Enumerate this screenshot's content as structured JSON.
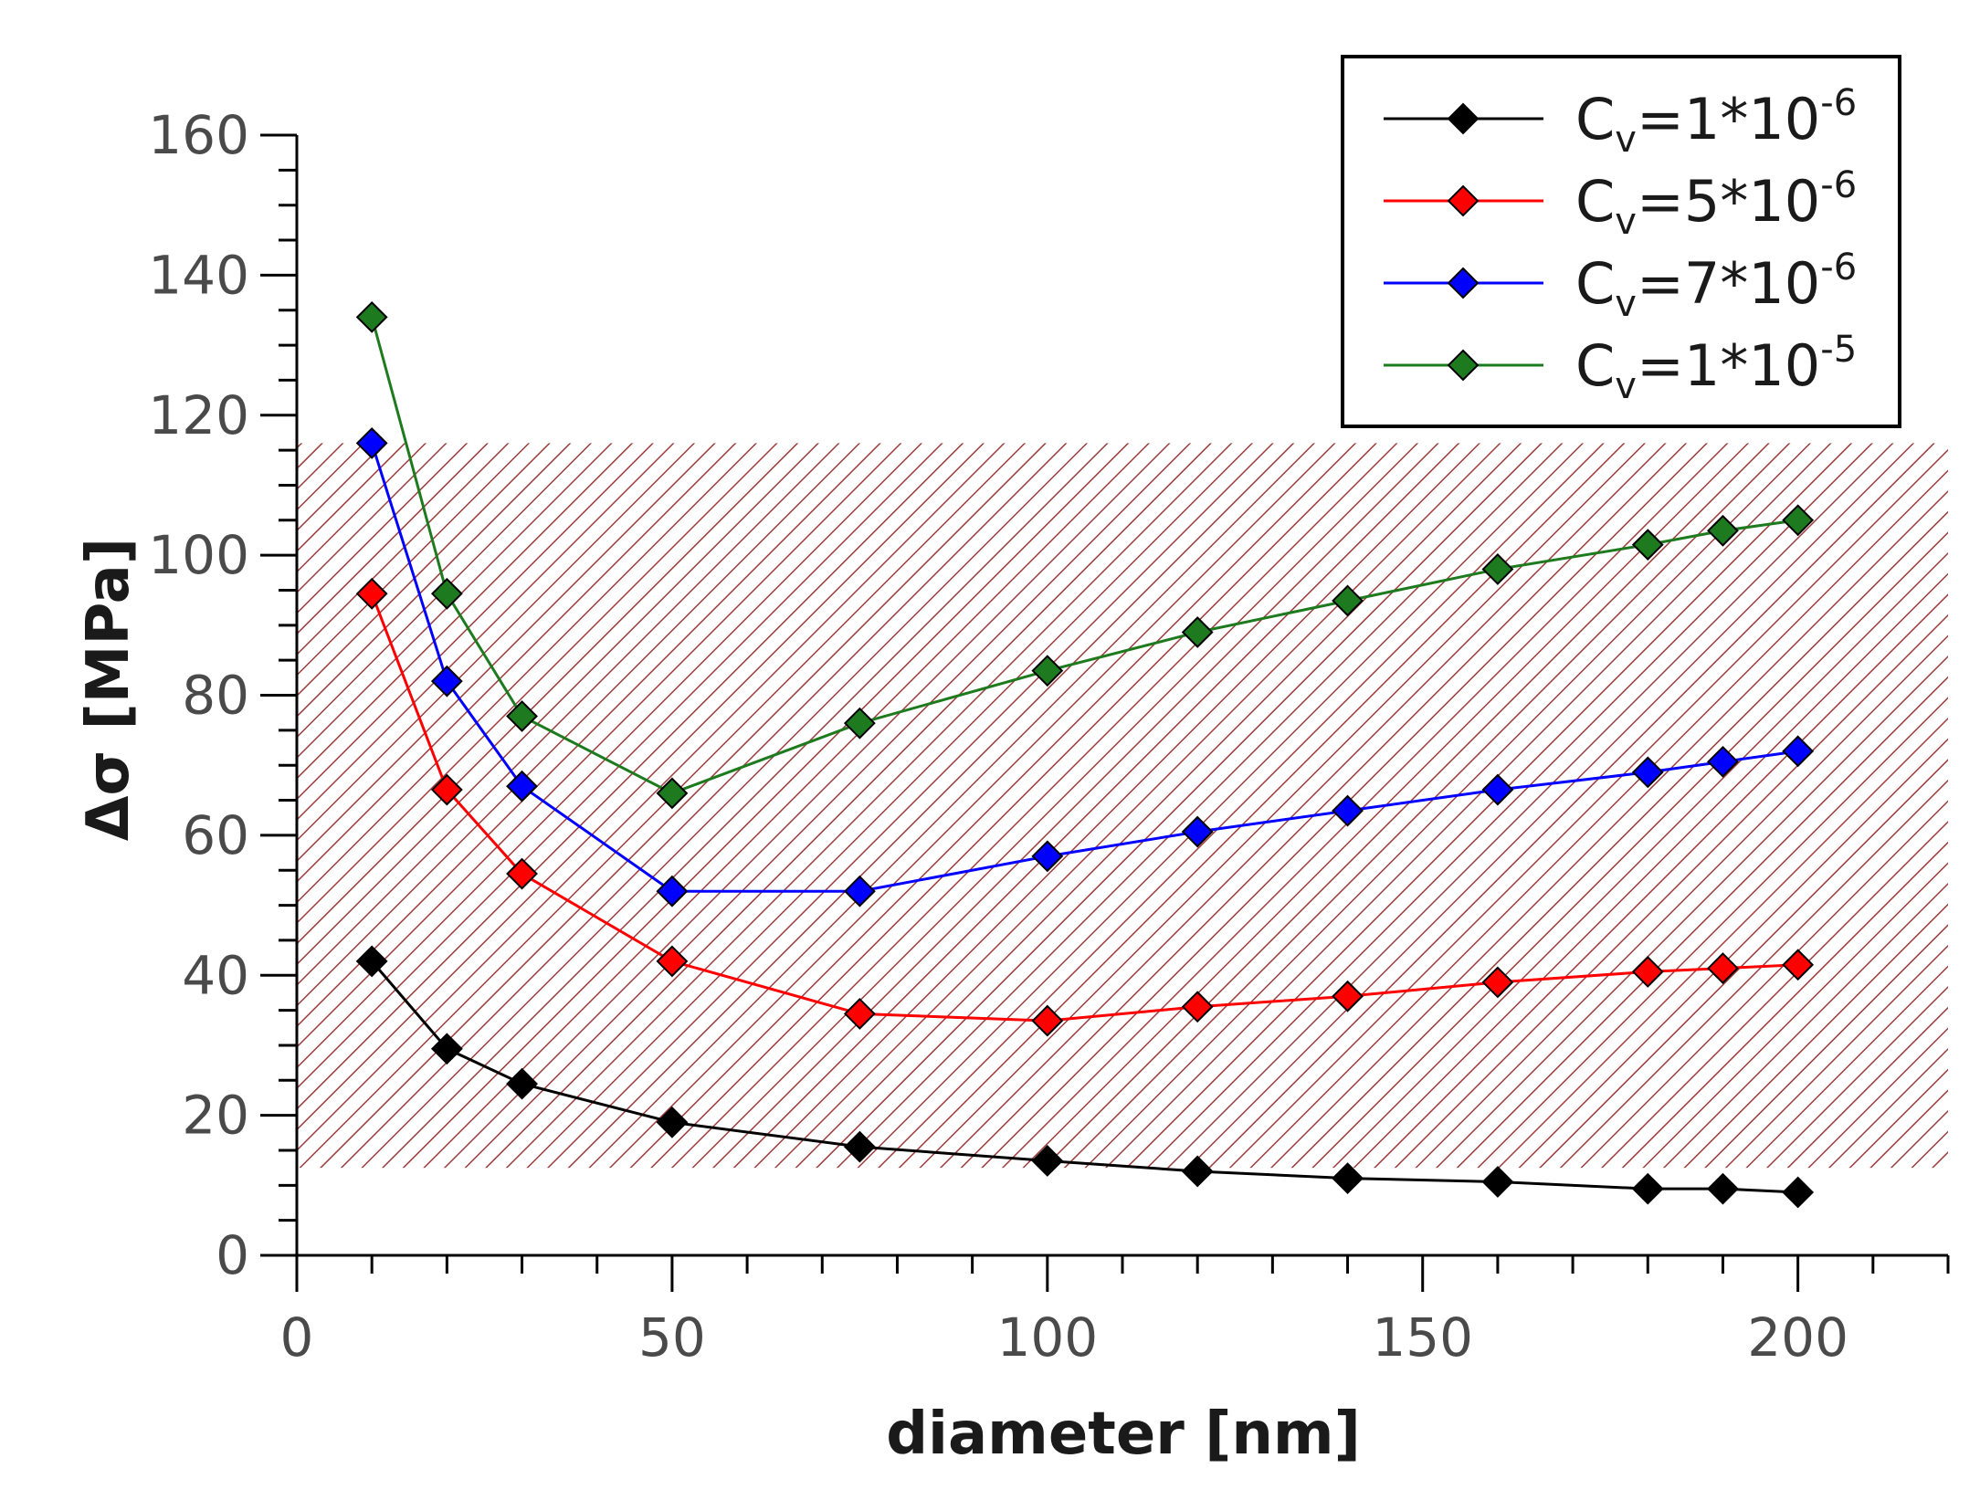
{
  "chart_data": {
    "type": "line",
    "xlabel": "diameter [nm]",
    "ylabel": "Δσ [MPa]",
    "xlim": [
      0,
      220
    ],
    "ylim": [
      0,
      160
    ],
    "x_ticks": [
      "0",
      "50",
      "100",
      "150",
      "200"
    ],
    "y_ticks": [
      "0",
      "20",
      "40",
      "60",
      "80",
      "100",
      "120",
      "140",
      "160"
    ],
    "x_tick_values": [
      0,
      50,
      100,
      150,
      200
    ],
    "y_tick_values": [
      0,
      20,
      40,
      60,
      80,
      100,
      120,
      140,
      160
    ],
    "shaded_band": {
      "y_range": [
        12.5,
        116
      ],
      "x_range": [
        0,
        220
      ],
      "color": "#8b1a1a",
      "pattern": "diagonal-hatch"
    },
    "legend_position": "top-right",
    "series": [
      {
        "name": "Cv=1*10-6",
        "label_main": "C",
        "label_sub": "v",
        "label_eq": "=1*10",
        "label_sup": "-6",
        "color": "#000000",
        "x": [
          10,
          20,
          30,
          50,
          75,
          100,
          120,
          140,
          160,
          180,
          190,
          200
        ],
        "values": [
          42,
          29.5,
          24.5,
          19,
          15.5,
          13.5,
          12,
          11,
          10.5,
          9.5,
          9.5,
          9
        ]
      },
      {
        "name": "Cv=5*10-6",
        "label_main": "C",
        "label_sub": "v",
        "label_eq": "=5*10",
        "label_sup": "-6",
        "color": "#ff0000",
        "x": [
          10,
          20,
          30,
          50,
          75,
          100,
          120,
          140,
          160,
          180,
          190,
          200
        ],
        "values": [
          94.5,
          66.5,
          54.5,
          42,
          34.5,
          33.5,
          35.5,
          37,
          39,
          40.5,
          41,
          41.5
        ]
      },
      {
        "name": "Cv=7*10-6",
        "label_main": "C",
        "label_sub": "v",
        "label_eq": "=7*10",
        "label_sup": "-6",
        "color": "#0000ff",
        "x": [
          10,
          20,
          30,
          50,
          75,
          100,
          120,
          140,
          160,
          180,
          190,
          200
        ],
        "values": [
          116,
          82,
          67,
          52,
          52,
          57,
          60.5,
          63.5,
          66.5,
          69,
          70.5,
          72
        ]
      },
      {
        "name": "Cv=1*10-5",
        "label_main": "C",
        "label_sub": "v",
        "label_eq": "=1*10",
        "label_sup": "-5",
        "color": "#1e7a1e",
        "x": [
          10,
          20,
          30,
          50,
          75,
          100,
          120,
          140,
          160,
          180,
          190,
          200
        ],
        "values": [
          134,
          94.5,
          77,
          66,
          76,
          83.5,
          89,
          93.5,
          98,
          101.5,
          103.5,
          105
        ]
      }
    ]
  }
}
